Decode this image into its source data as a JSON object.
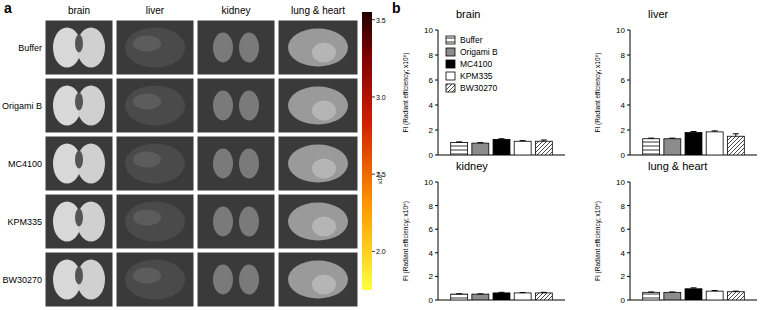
{
  "figure": {
    "panel_labels": [
      "a",
      "b"
    ],
    "image_grid": {
      "columns": [
        "brain",
        "liver",
        "kidney",
        "lung & heart"
      ],
      "rows": [
        "Buffer",
        "Origami B",
        "MC4100",
        "KPM335",
        "BW30270"
      ]
    },
    "colorbar": {
      "range": [
        1.75,
        3.55
      ],
      "ticks": [
        {
          "value": 2,
          "label": "2.0"
        },
        {
          "value": 2.5,
          "label": "2.5"
        },
        {
          "value": 3,
          "label": "3.0"
        },
        3.5
      ],
      "label": "x10⁸"
    }
  },
  "chart_data": [
    {
      "type": "bar",
      "title": "brain",
      "y_label": "FI (Radiant efficiency; x10⁸)",
      "categories": [
        null
      ],
      "ylim": [
        0,
        10
      ],
      "yticks": [
        0,
        2,
        4,
        6,
        8,
        10
      ],
      "tick_labels": "y",
      "legend": "top-left",
      "series": [
        {
          "name": "Buffer",
          "color": "#ffffff",
          "values": [
            1.0
          ],
          "errors": [
            0.05
          ]
        },
        {
          "name": "Origami B",
          "color": "#8c8c8c",
          "values": [
            0.95
          ],
          "errors": [
            0.04
          ]
        },
        {
          "name": "MC4100",
          "color": "#000000",
          "values": [
            1.25
          ],
          "errors": [
            0.05
          ]
        },
        {
          "name": "KPM335",
          "color": "#ffffff",
          "values": [
            1.1
          ],
          "errors": [
            0.05
          ]
        },
        {
          "name": "BW30270",
          "color": "#ffffff",
          "values": [
            1.1
          ],
          "errors": [
            0.1
          ]
        }
      ]
    },
    {
      "type": "bar",
      "title": "liver",
      "y_label": "FI (Radiant efficiency; x10⁸)",
      "categories": [
        null
      ],
      "ylim": [
        0,
        10
      ],
      "yticks": [
        0,
        2,
        4,
        6,
        8,
        10
      ],
      "tick_labels": "y",
      "series": [
        {
          "name": "Buffer",
          "color": "#ffffff",
          "values": [
            1.3
          ],
          "errors": [
            0.05
          ]
        },
        {
          "name": "Origami B",
          "color": "#8c8c8c",
          "values": [
            1.3
          ],
          "errors": [
            0.05
          ]
        },
        {
          "name": "MC4100",
          "color": "#000000",
          "values": [
            1.8
          ],
          "errors": [
            0.08
          ]
        },
        {
          "name": "KPM335",
          "color": "#ffffff",
          "values": [
            1.85
          ],
          "errors": [
            0.08
          ]
        },
        {
          "name": "BW30270",
          "color": "#ffffff",
          "values": [
            1.5
          ],
          "errors": [
            0.2
          ]
        }
      ]
    },
    {
      "type": "bar",
      "title": "kidney",
      "y_label": "FI (Radiant efficiency; x10⁸)",
      "categories": [
        null
      ],
      "ylim": [
        0,
        10
      ],
      "yticks": [
        0,
        2,
        4,
        6,
        8,
        10
      ],
      "tick_labels": "y",
      "series": [
        {
          "name": "Buffer",
          "color": "#ffffff",
          "values": [
            0.5
          ],
          "errors": [
            0.03
          ]
        },
        {
          "name": "Origami B",
          "color": "#8c8c8c",
          "values": [
            0.5
          ],
          "errors": [
            0.02
          ]
        },
        {
          "name": "MC4100",
          "color": "#000000",
          "values": [
            0.6
          ],
          "errors": [
            0.05
          ]
        },
        {
          "name": "KPM335",
          "color": "#ffffff",
          "values": [
            0.6
          ],
          "errors": [
            0.03
          ]
        },
        {
          "name": "BW30270",
          "color": "#ffffff",
          "values": [
            0.6
          ],
          "errors": [
            0.05
          ]
        }
      ]
    },
    {
      "type": "bar",
      "title": "lung & heart",
      "y_label": "FI (Radiant efficiency; x10⁸)",
      "categories": [
        null
      ],
      "ylim": [
        0,
        10
      ],
      "yticks": [
        0,
        2,
        4,
        6,
        8,
        10
      ],
      "tick_labels": "y",
      "series": [
        {
          "name": "Buffer",
          "color": "#ffffff",
          "values": [
            0.65
          ],
          "errors": [
            0.03
          ]
        },
        {
          "name": "Origami B",
          "color": "#8c8c8c",
          "values": [
            0.65
          ],
          "errors": [
            0.03
          ]
        },
        {
          "name": "MC4100",
          "color": "#000000",
          "values": [
            0.95
          ],
          "errors": [
            0.08
          ]
        },
        {
          "name": "KPM335",
          "color": "#ffffff",
          "values": [
            0.75
          ],
          "errors": [
            0.05
          ]
        },
        {
          "name": "BW30270",
          "color": "#ffffff",
          "values": [
            0.7
          ],
          "errors": [
            0.05
          ]
        }
      ]
    }
  ]
}
